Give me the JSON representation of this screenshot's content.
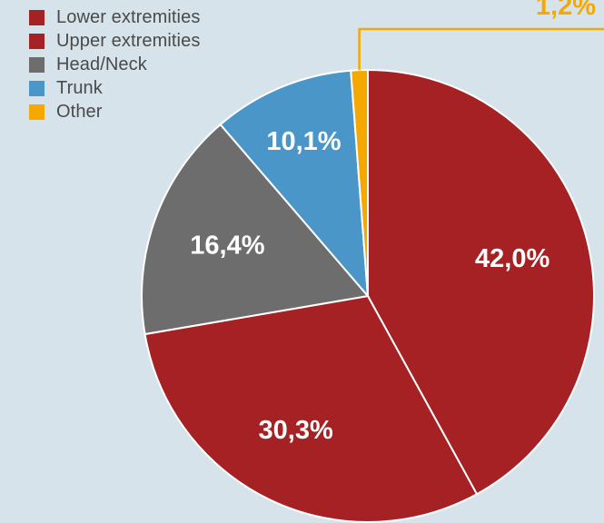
{
  "chart_data": {
    "type": "pie",
    "legend_position": "top-left",
    "slices": [
      {
        "label": "Lower extremities",
        "value": 42.0,
        "display": "42,0%",
        "color": "#a52124"
      },
      {
        "label": "Upper extremities",
        "value": 30.3,
        "display": "30,3%",
        "color": "#a52124"
      },
      {
        "label": "Head/Neck",
        "value": 16.4,
        "display": "16,4%",
        "color": "#6d6d6d"
      },
      {
        "label": "Trunk",
        "value": 10.1,
        "display": "10,1%",
        "color": "#4a96c8"
      },
      {
        "label": "Other",
        "value": 1.2,
        "display": "1,2%",
        "color": "#f5a800"
      }
    ]
  }
}
